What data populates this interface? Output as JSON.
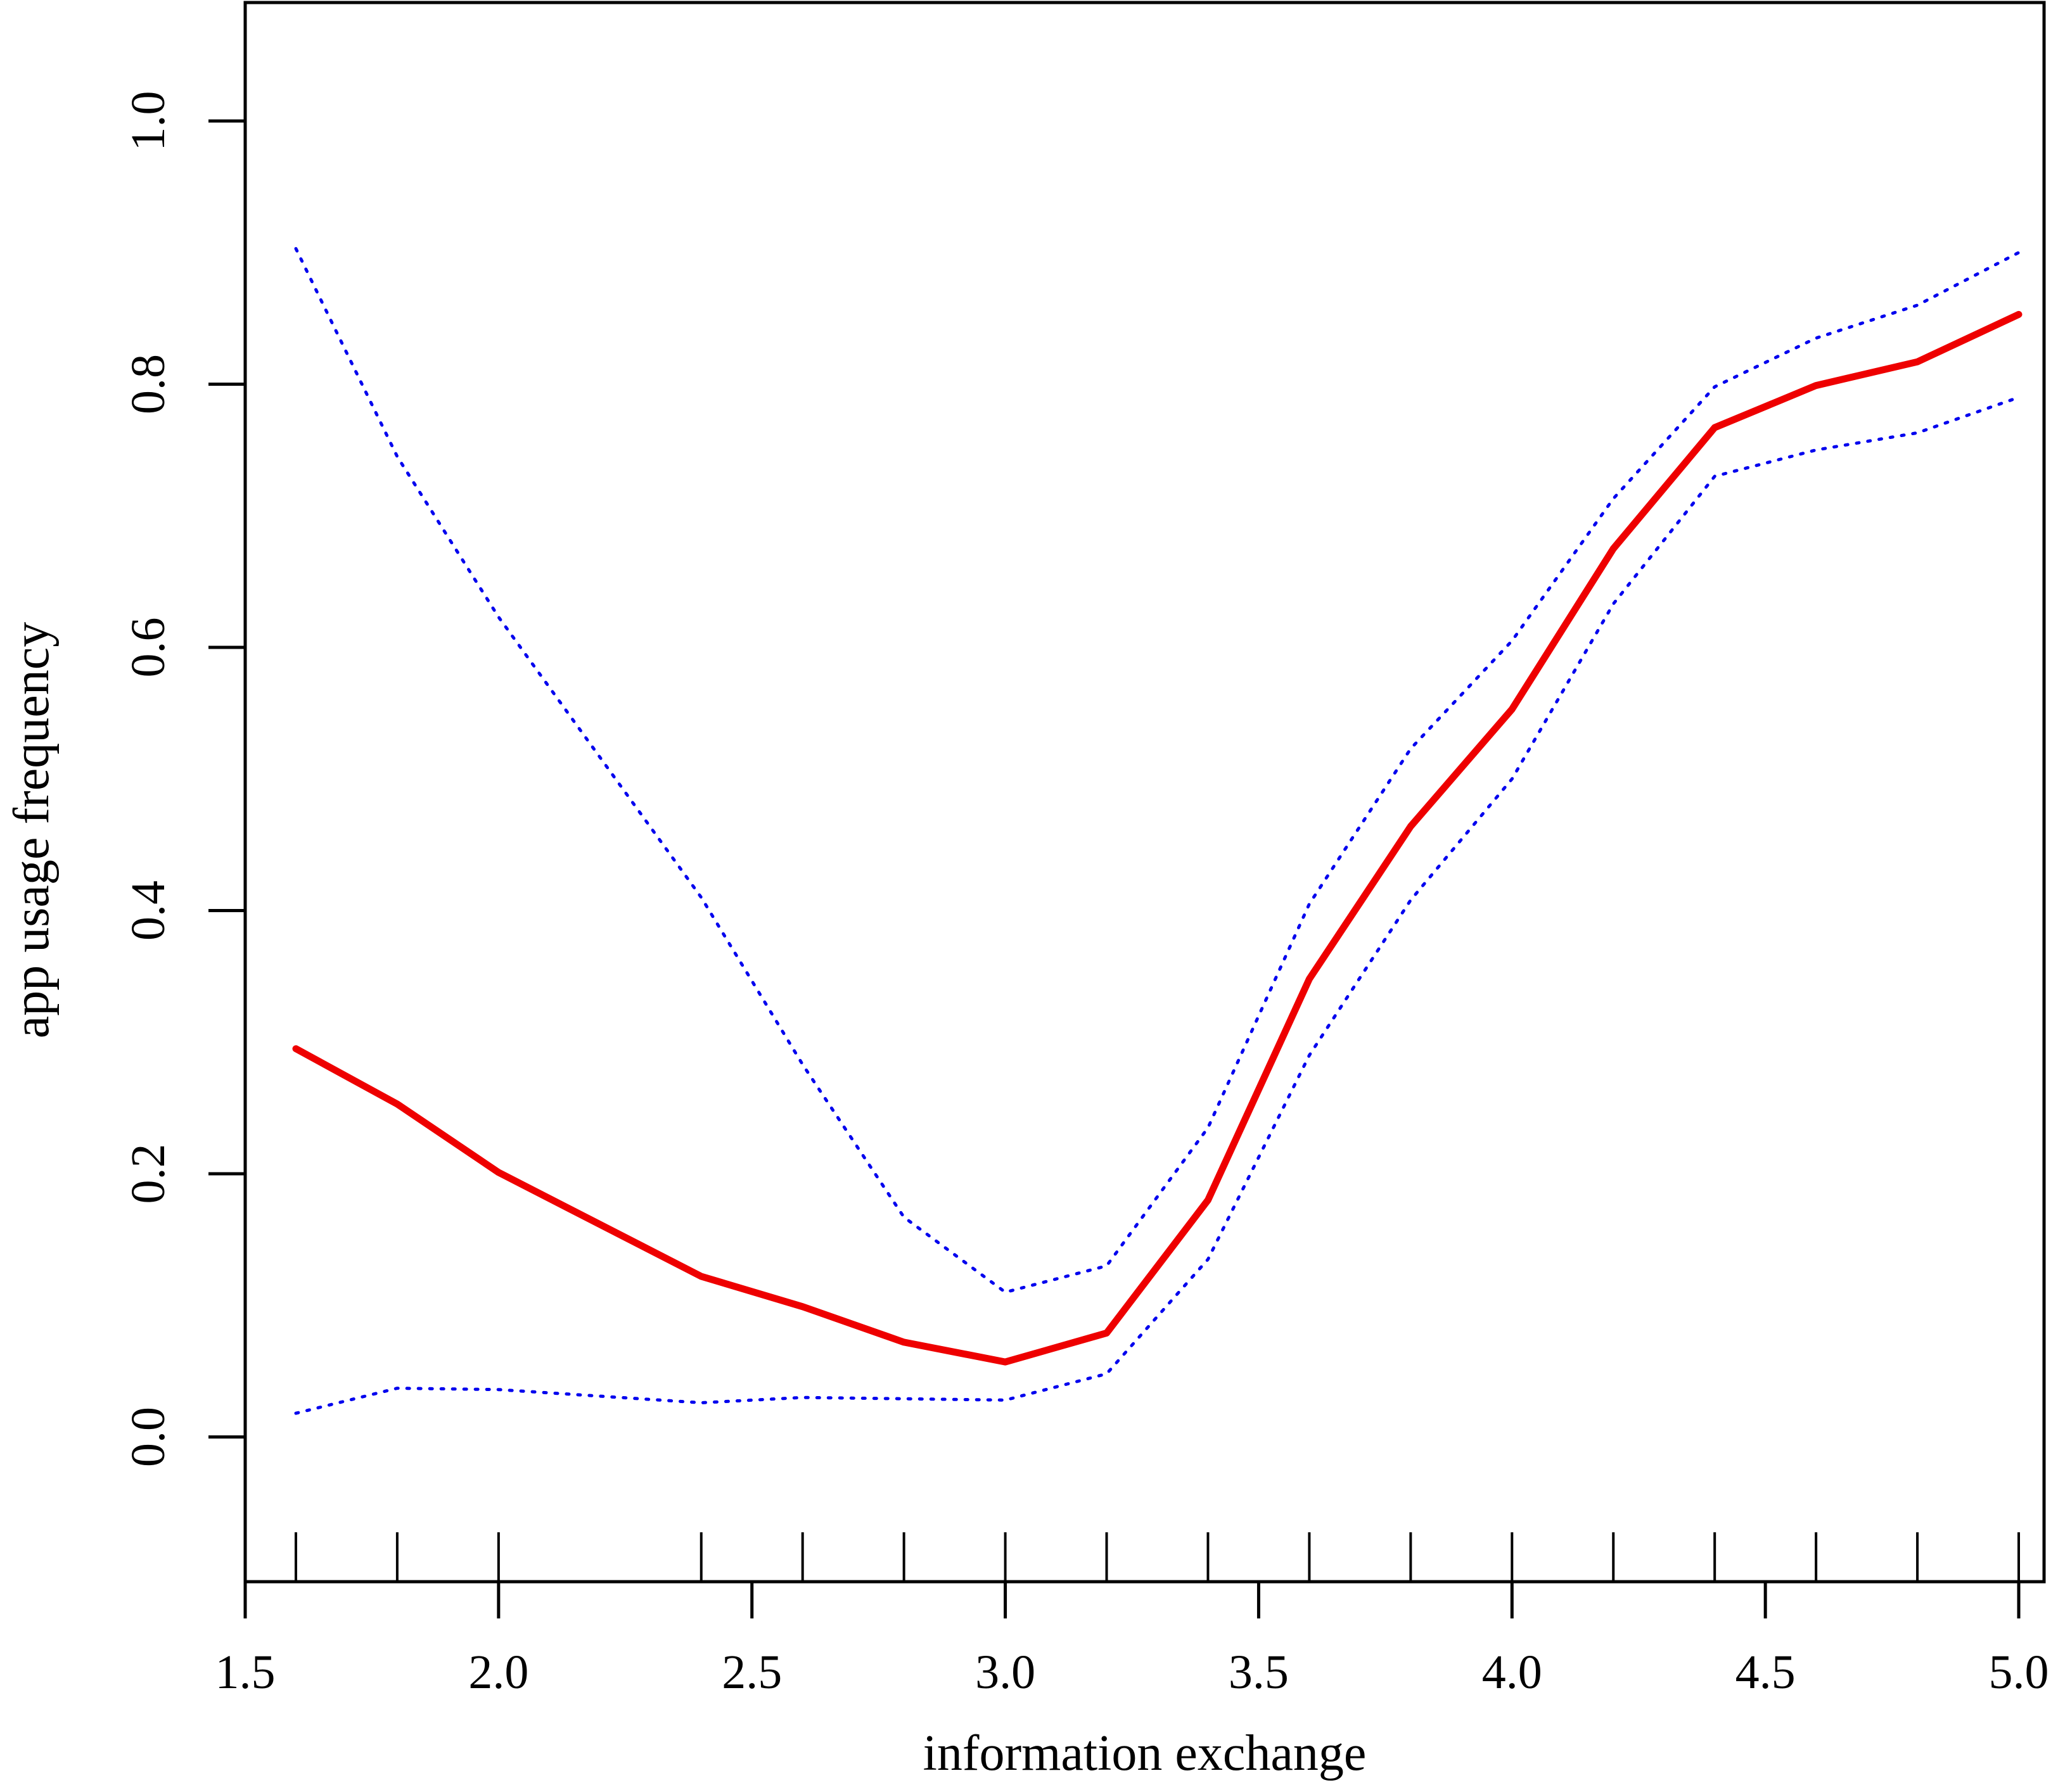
{
  "chart_data": {
    "type": "line",
    "title": "",
    "xlabel": "information exchange",
    "ylabel": "app usage frequency",
    "xlim": [
      1.5,
      5.05
    ],
    "ylim": [
      -0.11,
      1.09
    ],
    "x_ticks": [
      1.5,
      2.0,
      2.5,
      3.0,
      3.5,
      4.0,
      4.5,
      5.0
    ],
    "x_tick_labels": [
      "1.5",
      "2.0",
      "2.5",
      "3.0",
      "3.5",
      "4.0",
      "4.5",
      "5.0"
    ],
    "y_ticks": [
      0.0,
      0.2,
      0.4,
      0.6,
      0.8,
      1.0
    ],
    "y_tick_labels": [
      "0.0",
      "0.2",
      "0.4",
      "0.6",
      "0.8",
      "1.0"
    ],
    "rug_x": [
      1.6,
      1.8,
      2.0,
      2.4,
      2.6,
      2.8,
      3.0,
      3.2,
      3.4,
      3.6,
      3.8,
      4.0,
      4.2,
      4.4,
      4.6,
      4.8,
      5.0
    ],
    "grid": false,
    "legend": "none",
    "x": [
      1.6,
      1.8,
      2.0,
      2.4,
      2.6,
      2.8,
      3.0,
      3.2,
      3.4,
      3.6,
      3.8,
      4.0,
      4.2,
      4.4,
      4.6,
      4.8,
      5.0
    ],
    "series": [
      {
        "style": "solid",
        "color": "#ee0000",
        "values": [
          0.295,
          0.253,
          0.201,
          0.122,
          0.099,
          0.072,
          0.057,
          0.079,
          0.18,
          0.348,
          0.464,
          0.553,
          0.675,
          0.767,
          0.799,
          0.817,
          0.853
        ]
      },
      {
        "style": "dotted",
        "color": "#0000ee",
        "values": [
          0.903,
          0.745,
          0.623,
          0.41,
          0.283,
          0.167,
          0.11,
          0.13,
          0.235,
          0.405,
          0.523,
          0.605,
          0.713,
          0.798,
          0.835,
          0.86,
          0.9
        ]
      },
      {
        "style": "dotted",
        "color": "#0000ee",
        "values": [
          0.018,
          0.037,
          0.036,
          0.026,
          0.03,
          0.029,
          0.028,
          0.048,
          0.135,
          0.29,
          0.408,
          0.5,
          0.633,
          0.73,
          0.75,
          0.763,
          0.79
        ]
      }
    ]
  }
}
